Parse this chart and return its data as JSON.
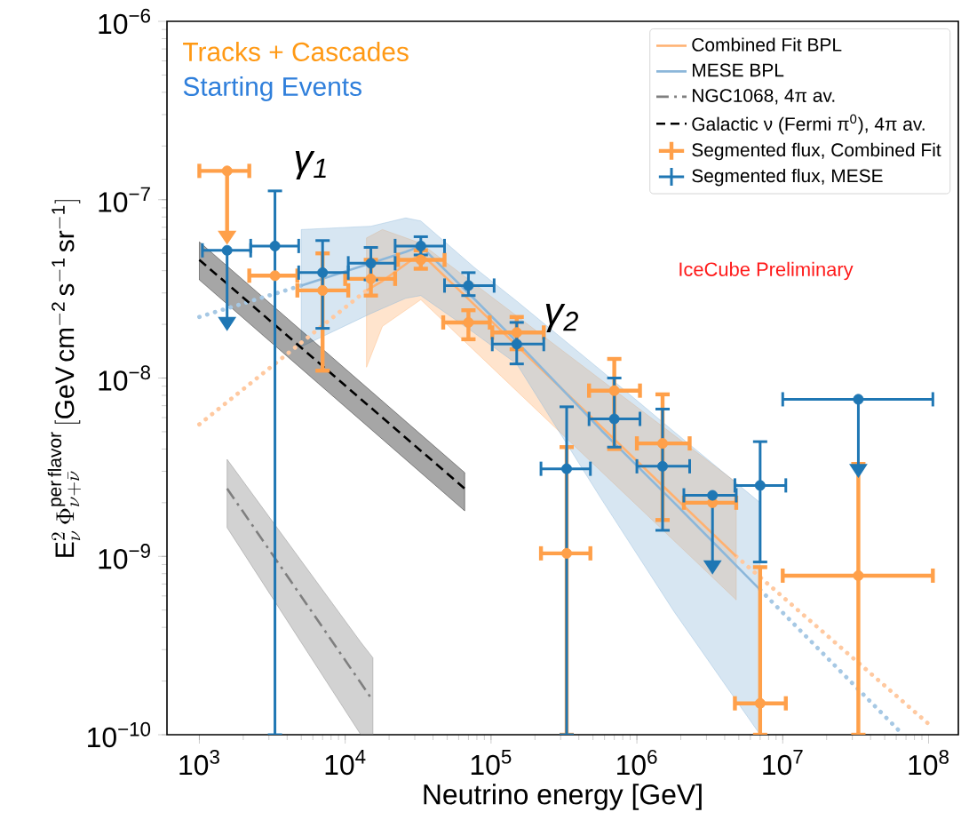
{
  "chart_data": {
    "type": "line",
    "log": "xy",
    "legend": "top right",
    "xlabel": "Neutrino energy [GeV]",
    "ylabel": "\\mathrm{E}_{\\nu}^{2}\\,\\Phi_{\\nu+\\bar{\\nu}}^{\\mathrm{per\\,flavor}}\\,[\\mathrm{GeV\\,cm^{-2}\\,s^{-1}\\,sr^{-1}}]",
    "xlim": [
      600,
      160000000
    ],
    "ylim": [
      1e-10,
      1e-06
    ],
    "xticks": [
      {
        "value": 1000,
        "label": "10$^{3}$"
      },
      {
        "value": 10000,
        "label": "10$^{4}$"
      },
      {
        "value": 100000,
        "label": "10$^{5}$"
      },
      {
        "value": 1000000,
        "label": "10$^{6}$"
      },
      {
        "value": 10000000,
        "label": "10$^{7}$"
      },
      {
        "value": 100000000,
        "label": "10$^{8}$"
      }
    ],
    "yticks": [
      {
        "value": 1e-10,
        "label": "10$^{−10}$"
      },
      {
        "value": 1e-09,
        "label": "10$^{−9}$"
      },
      {
        "value": 1e-08,
        "label": "10$^{−8}$"
      },
      {
        "value": 1e-07,
        "label": "10$^{−7}$"
      },
      {
        "value": 1e-06,
        "label": "10$^{−6}$"
      }
    ],
    "annotations": [
      "Tracks + Cascades",
      "Starting Events",
      "γ$_{1}$",
      "γ$_{2}$",
      "IceCube Preliminary"
    ],
    "series": [
      {
        "name": "Combined Fit BPL",
        "color": "#ffb170",
        "line_style": "solid",
        "x": [
          14000,
          18000,
          33000,
          4800000
        ],
        "values": [
          3.1e-08,
          3.5e-08,
          5e-08,
          1e-09
        ],
        "lower": [
          1.15e-08,
          1.95e-08,
          2.75e-08,
          5.7e-10
        ],
        "upper": [
          6.1e-08,
          6.8e-08,
          5.7e-08,
          2.6e-09
        ]
      },
      {
        "name": "MESE BPL",
        "color": "#8cb7da",
        "line_style": "solid",
        "x": [
          5000,
          15000,
          26000,
          33000,
          76000,
          150000,
          570000,
          1800000,
          7000000
        ],
        "values": [
          3.3e-08,
          4.4e-08,
          5.1e-08,
          5.5e-08,
          2.8e-08,
          1.6e-08,
          5.1e-09,
          2e-09,
          6.5e-10
        ],
        "lower": [
          1.5e-08,
          2.3e-08,
          2.8e-08,
          2.9e-08,
          1.8e-08,
          1.2e-08,
          2.1e-09,
          4.9e-10,
          1e-10
        ],
        "upper": [
          6.8e-08,
          7.1e-08,
          7.9e-08,
          7.6e-08,
          4.2e-08,
          2.7e-08,
          1.1e-08,
          5e-09,
          2e-09
        ]
      },
      {
        "name": "NGC1068, 4π av.",
        "color": "#7f7f7f",
        "line_style": "dashdot",
        "x": [
          1550,
          12800,
          15500
        ],
        "values": [
          2.4e-09,
          1.95e-10,
          1.55e-10
        ],
        "lower": [
          1.45e-09,
          1e-10,
          1e-10
        ],
        "upper": [
          3.5e-09,
          3.3e-10,
          2.7e-10
        ]
      },
      {
        "name": "Galactic ν (Fermi π$^{0}$), 4π av.",
        "color": "#000000",
        "line_style": "dashed",
        "x": [
          1000,
          66000
        ],
        "values": [
          4.6e-08,
          2.4e-09
        ],
        "lower": [
          3.55e-08,
          1.8e-09
        ],
        "upper": [
          5.8e-08,
          2.95e-09
        ]
      },
      {
        "type": "line",
        "color": "#ffc9a0",
        "line_style": "dotted",
        "x": [
          1000,
          14000
        ],
        "values": [
          5.5e-09,
          3.1e-08
        ]
      },
      {
        "type": "line",
        "color": "#ffc9a0",
        "line_style": "dotted",
        "x": [
          4800000,
          100000000
        ],
        "values": [
          1e-09,
          1.15e-10
        ]
      },
      {
        "type": "line",
        "color": "#a6c8e4",
        "line_style": "dotted",
        "x": [
          1000,
          5000
        ],
        "values": [
          2.2e-08,
          3.3e-08
        ]
      },
      {
        "type": "line",
        "color": "#a6c8e4",
        "line_style": "dotted",
        "x": [
          7000000,
          63000000
        ],
        "values": [
          6.5e-10,
          1.05e-10
        ]
      },
      {
        "name": "Segmented flux, Combined Fit",
        "type": "scatter",
        "color": "#ffa04a",
        "x": [
          3300,
          7000,
          15000,
          33000,
          70000,
          150000,
          330000,
          700000,
          1500000,
          3300000,
          7000000,
          33000000
        ],
        "values": [
          3.75e-08,
          3.1e-08,
          3.6e-08,
          4.6e-08,
          2.05e-08,
          1.8e-08,
          1.04e-09,
          8.5e-09,
          4.3e-09,
          2e-09,
          1.5e-10,
          7.8e-10
        ],
        "errors": [
          null,
          [
            1.1e-08,
            5e-08
          ],
          [
            2.9e-08,
            4.6e-08
          ],
          [
            4.1e-08,
            5.2e-08
          ],
          [
            1.65e-08,
            2.4e-08
          ],
          [
            1.45e-08,
            2.2e-08
          ],
          [
            1e-10,
            4.1e-09
          ],
          [
            4e-09,
            1.28e-08
          ],
          [
            1.6e-09,
            8.1e-09
          ],
          null,
          [
            1e-10,
            8.7e-10
          ],
          [
            1e-10,
            3.3e-09
          ]
        ],
        "xerrors": [
          [
            2200,
            4700
          ],
          [
            4700,
            10500
          ],
          [
            10000,
            22000
          ],
          [
            23000,
            48000
          ],
          [
            47000,
            98000
          ],
          [
            102000,
            230000
          ],
          [
            220000,
            480000
          ],
          [
            470000,
            1050000
          ],
          [
            1000000,
            2300000
          ],
          [
            2100000,
            4800000
          ],
          [
            4700000,
            10500000
          ],
          [
            10000000,
            107000000
          ]
        ]
      },
      {
        "name": "Segmented flux, MESE",
        "type": "scatter",
        "color": "#1f77b4",
        "x": [
          3300,
          7000,
          15000,
          33000,
          70000,
          150000,
          330000,
          700000,
          1500000,
          7000000
        ],
        "values": [
          5.5e-08,
          3.9e-08,
          4.4e-08,
          5.5e-08,
          3.3e-08,
          1.55e-08,
          3.1e-09,
          5.9e-09,
          3.2e-09,
          2.5e-09
        ],
        "errors": [
          [
            1e-10,
            1.12e-07
          ],
          [
            1.9e-08,
            5.9e-08
          ],
          [
            3.55e-08,
            5.4e-08
          ],
          [
            4.9e-08,
            6.2e-08
          ],
          [
            2.9e-08,
            3.9e-08
          ],
          [
            1.2e-08,
            2.05e-08
          ],
          [
            1e-10,
            6.9e-09
          ],
          [
            4.1e-09,
            1e-08
          ],
          [
            1.4e-09,
            6.7e-09
          ],
          [
            9.3e-10,
            4.4e-09
          ]
        ],
        "xerrors": [
          [
            2250,
            4800
          ],
          [
            4800,
            10500
          ],
          [
            10500,
            22000
          ],
          [
            22000,
            48000
          ],
          [
            48000,
            105000
          ],
          [
            102000,
            230000
          ],
          [
            220000,
            480000
          ],
          [
            470000,
            1050000
          ],
          [
            1000000,
            2300000
          ],
          [
            4700000,
            10500000
          ]
        ]
      },
      {
        "type": "scatter",
        "color": "#ffa04a",
        "x": [
          1550
        ],
        "values": [
          1.45e-07
        ],
        "errors": [
          [
            6.7e-08,
            1.45e-07
          ]
        ],
        "xerrors": [
          [
            1000,
            2200
          ]
        ]
      },
      {
        "type": "scatter",
        "color": "#1f77b4",
        "x": [
          1550,
          3300000,
          33000000
        ],
        "values": [
          5.2e-08,
          2.2e-09,
          7.6e-09
        ],
        "errors": [
          [
            2.2e-08,
            5.2e-08
          ],
          [
            9.5e-10,
            2.2e-09
          ],
          [
            3.3e-09,
            7.6e-09
          ]
        ],
        "xerrors": [
          [
            1050,
            2250
          ],
          [
            2100000,
            4800000
          ],
          [
            10000000,
            107000000
          ]
        ]
      }
    ]
  }
}
